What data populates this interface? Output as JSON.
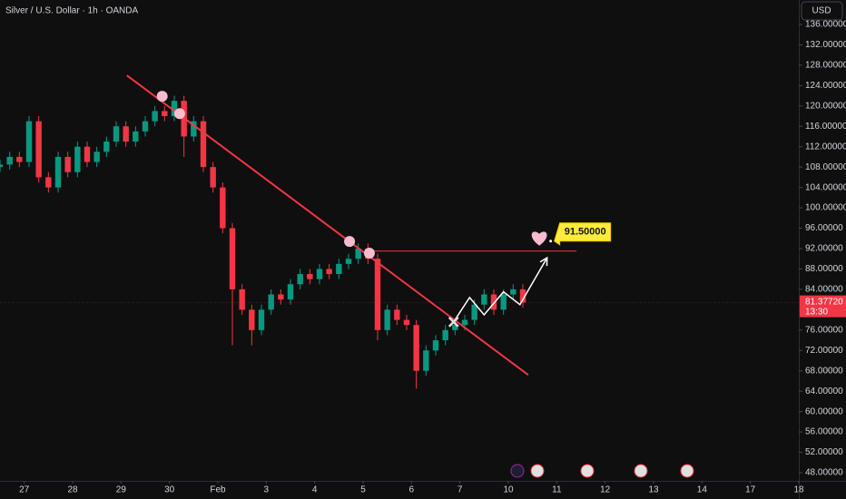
{
  "chart_data": {
    "type": "candlestick",
    "title": "Silver / U.S. Dollar · 1h · OANDA",
    "currency": "USD",
    "up_color": "#089981",
    "down_color": "#f23645",
    "xlim": [
      -0.5,
      16
    ],
    "ylim": [
      46.4,
      140.8
    ],
    "xticks": [
      {
        "value": 0,
        "label": "27"
      },
      {
        "value": 1,
        "label": "28"
      },
      {
        "value": 2,
        "label": "29"
      },
      {
        "value": 3,
        "label": "30"
      },
      {
        "value": 4,
        "label": "Feb"
      },
      {
        "value": 5,
        "label": "3"
      },
      {
        "value": 6,
        "label": "4"
      },
      {
        "value": 7,
        "label": "5"
      },
      {
        "value": 8,
        "label": "6"
      },
      {
        "value": 9,
        "label": "7"
      },
      {
        "value": 10,
        "label": "10"
      },
      {
        "value": 11,
        "label": "11"
      },
      {
        "value": 12,
        "label": "12"
      },
      {
        "value": 13,
        "label": "13"
      },
      {
        "value": 14,
        "label": "14"
      },
      {
        "value": 15,
        "label": "17"
      },
      {
        "value": 16,
        "label": "18"
      }
    ],
    "yticks": [
      {
        "value": 48,
        "label": "48.00000"
      },
      {
        "value": 52,
        "label": "52.00000"
      },
      {
        "value": 56,
        "label": "56.00000"
      },
      {
        "value": 60,
        "label": "60.00000"
      },
      {
        "value": 64,
        "label": "64.00000"
      },
      {
        "value": 68,
        "label": "68.00000"
      },
      {
        "value": 72,
        "label": "72.00000"
      },
      {
        "value": 76,
        "label": "76.00000"
      },
      {
        "value": 80,
        "label": "80.00000"
      },
      {
        "value": 84,
        "label": "84.00000"
      },
      {
        "value": 88,
        "label": "88.00000"
      },
      {
        "value": 92,
        "label": "92.00000"
      },
      {
        "value": 96,
        "label": "96.00000"
      },
      {
        "value": 100,
        "label": "100.00000"
      },
      {
        "value": 104,
        "label": "104.00000"
      },
      {
        "value": 108,
        "label": "108.00000"
      },
      {
        "value": 112,
        "label": "112.00000"
      },
      {
        "value": 116,
        "label": "116.00000"
      },
      {
        "value": 120,
        "label": "120.00000"
      },
      {
        "value": 124,
        "label": "124.00000"
      },
      {
        "value": 128,
        "label": "128.00000"
      },
      {
        "value": 132,
        "label": "132.00000"
      },
      {
        "value": 136,
        "label": "136.00000"
      }
    ],
    "x": [
      -0.5,
      -0.3,
      -0.1,
      0.1,
      0.3,
      0.5,
      0.7,
      0.9,
      1.1,
      1.3,
      1.5,
      1.7,
      1.9,
      2.1,
      2.3,
      2.5,
      2.7,
      2.9,
      3.1,
      3.3,
      3.5,
      3.7,
      3.9,
      4.1,
      4.3,
      4.5,
      4.7,
      4.9,
      5.1,
      5.3,
      5.5,
      5.7,
      5.9,
      6.1,
      6.3,
      6.5,
      6.7,
      6.9,
      7.1,
      7.3,
      7.5,
      7.7,
      7.9,
      8.1,
      8.3,
      8.5,
      8.7,
      8.9,
      9.1,
      9.3,
      9.5,
      9.7,
      9.9,
      10.1,
      10.3
    ],
    "open": [
      108,
      108.5,
      110,
      109,
      117,
      106,
      104,
      110,
      107,
      112,
      109,
      111,
      113,
      116,
      113,
      115,
      117,
      119,
      118,
      121,
      114,
      117,
      108,
      104,
      96,
      84,
      80,
      76,
      80,
      83,
      82,
      85,
      87,
      86,
      88,
      87,
      89,
      90,
      92,
      90,
      76,
      80,
      78,
      77,
      68,
      72,
      74,
      76,
      77,
      78,
      81,
      83,
      80,
      83,
      84
    ],
    "high": [
      109.5,
      111,
      111,
      118,
      118,
      107,
      111,
      111,
      113,
      113,
      112,
      114,
      117,
      117,
      116,
      118,
      120,
      120,
      122,
      122,
      118,
      118,
      109,
      105,
      97,
      85,
      81,
      81,
      84,
      84,
      86,
      88,
      88,
      89,
      89,
      90,
      91,
      93,
      93,
      91,
      81,
      81,
      79,
      78,
      73,
      75,
      77,
      78,
      79,
      82,
      84,
      84,
      84,
      85,
      85
    ],
    "low": [
      107,
      107.5,
      108,
      108,
      105,
      103,
      103,
      106,
      106,
      108,
      108,
      110,
      112,
      112,
      112,
      114,
      116,
      117,
      117,
      110,
      113,
      107,
      103,
      95,
      73,
      79,
      73,
      75,
      79,
      81,
      81,
      84,
      85,
      85,
      86,
      86,
      88,
      89,
      89,
      74,
      75,
      77,
      76,
      64.5,
      67,
      71,
      73,
      75,
      76,
      77,
      80,
      79,
      79,
      82,
      80.4
    ],
    "close": [
      108.5,
      110,
      109,
      117,
      106,
      104,
      110,
      107,
      112,
      109,
      111,
      113,
      116,
      113,
      115,
      117,
      119,
      118,
      121,
      114,
      117,
      108,
      104,
      96,
      84,
      80,
      76,
      80,
      83,
      82,
      85,
      87,
      86,
      88,
      87,
      89,
      90,
      92,
      90,
      76,
      80,
      78,
      77,
      68,
      72,
      74,
      76,
      77,
      78,
      81,
      83,
      80,
      83,
      84,
      81.4
    ],
    "current_price": {
      "value": 81.3772,
      "label": "81.37720",
      "countdown": "13:30"
    },
    "trendline": {
      "color": "#f23645",
      "x": [
        2.12,
        10.41
      ],
      "y": [
        126,
        67.2
      ]
    },
    "touch_points": {
      "color": "#f8bbd0",
      "x": [
        2.85,
        3.21,
        6.72,
        7.13
      ],
      "y": [
        121.9,
        118.5,
        93.4,
        91.1
      ]
    },
    "target": {
      "value": 91.5,
      "label": "91.50000",
      "x": [
        7.13,
        11.41
      ]
    },
    "projection": {
      "x": [
        8.87,
        9.2,
        9.5,
        9.9,
        10.24,
        10.8
      ],
      "y": [
        77.6,
        82.4,
        79,
        83.5,
        81,
        90.2
      ]
    },
    "breakout_marker": {
      "x": 8.87,
      "y": 77.6
    },
    "heart": {
      "x": 10.64,
      "y": 94
    }
  }
}
